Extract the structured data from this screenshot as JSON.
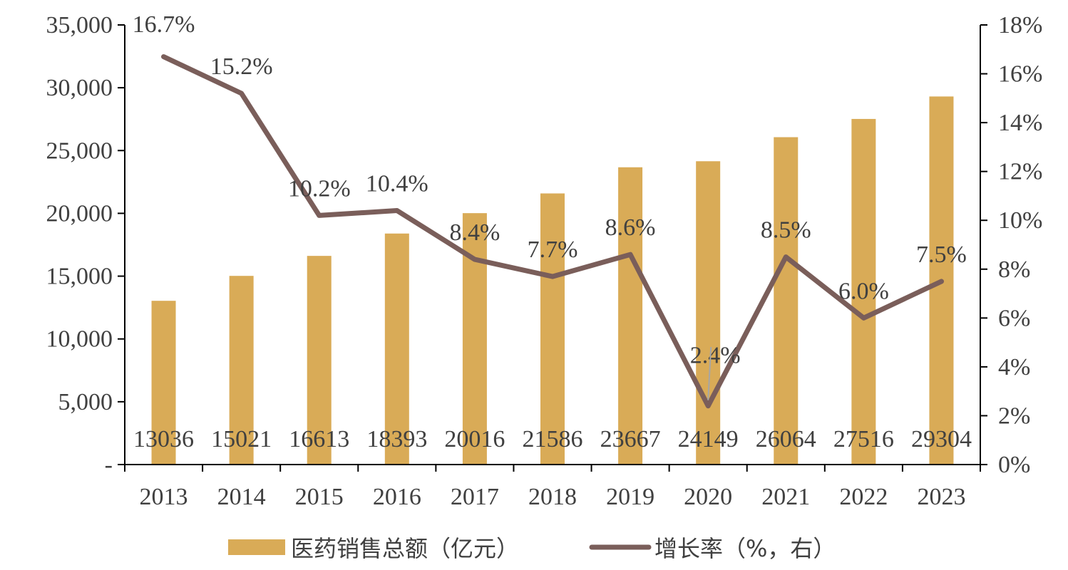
{
  "chart_data": {
    "type": "bar",
    "categories": [
      "2013",
      "2014",
      "2015",
      "2016",
      "2017",
      "2018",
      "2019",
      "2020",
      "2021",
      "2022",
      "2023"
    ],
    "series": [
      {
        "name": "医药销售总额（亿元）",
        "type": "bar",
        "axis": "left",
        "values": [
          13036,
          15021,
          16613,
          18393,
          20016,
          21586,
          23667,
          24149,
          26064,
          27516,
          29304
        ],
        "labels": [
          "13036",
          "15021",
          "16613",
          "18393",
          "20016",
          "21586",
          "23667",
          "24149",
          "26064",
          "27516",
          "29304"
        ],
        "color": "#D9AB57"
      },
      {
        "name": "增长率（%，右）",
        "type": "line",
        "axis": "right",
        "values": [
          16.7,
          15.2,
          10.2,
          10.4,
          8.4,
          7.7,
          8.6,
          2.4,
          8.5,
          6.0,
          7.5
        ],
        "labels": [
          "16.7%",
          "15.2%",
          "10.2%",
          "10.4%",
          "8.4%",
          "7.7%",
          "8.6%",
          "2.4%",
          "8.5%",
          "6.0%",
          "7.5%"
        ],
        "color": "#7A5E5A"
      }
    ],
    "y_left": {
      "ylim": [
        0,
        35000
      ],
      "ticks": [
        0,
        5000,
        10000,
        15000,
        20000,
        25000,
        30000,
        35000
      ],
      "tick_labels": [
        "-",
        "5,000",
        "10,000",
        "15,000",
        "20,000",
        "25,000",
        "30,000",
        "35,000"
      ]
    },
    "y_right": {
      "ylim": [
        0,
        18
      ],
      "ticks": [
        0,
        2,
        4,
        6,
        8,
        10,
        12,
        14,
        16,
        18
      ],
      "tick_labels": [
        "0%",
        "2%",
        "4%",
        "6%",
        "8%",
        "10%",
        "12%",
        "14%",
        "16%",
        "18%"
      ]
    },
    "grid": false,
    "legend_position": "bottom"
  }
}
